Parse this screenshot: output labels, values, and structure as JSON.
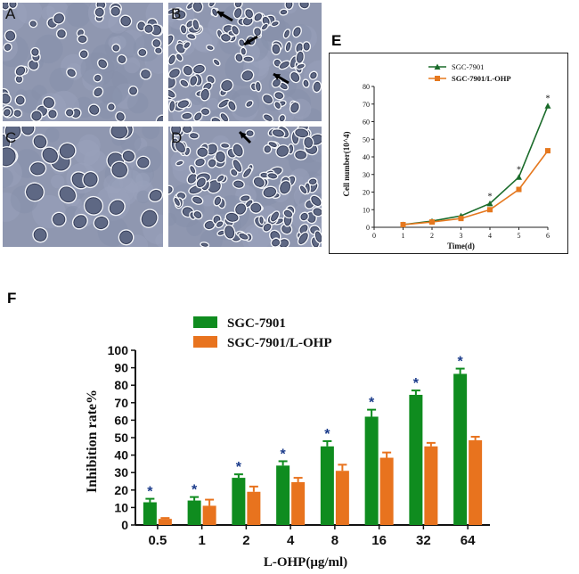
{
  "panels": {
    "A": "A",
    "B": "B",
    "C": "C",
    "D": "D",
    "E": "E",
    "F": "F"
  },
  "colors": {
    "green": "#0f8c1f",
    "orange": "#e8731e",
    "line_green": "#1a6b2a",
    "line_orange": "#e5781f",
    "star": "#1a3a8a"
  },
  "chart_data": [
    {
      "type": "line",
      "xlabel": "Time(d)",
      "ylabel": "Cell number(10^4)",
      "x": [
        1,
        2,
        3,
        4,
        5,
        6
      ],
      "xticks": [
        "0",
        "1",
        "2",
        "3",
        "4",
        "5",
        "6"
      ],
      "yticks": [
        "0",
        "10",
        "20",
        "30",
        "40",
        "50",
        "60",
        "70",
        "80"
      ],
      "xlim": [
        0,
        6
      ],
      "ylim": [
        0,
        80
      ],
      "legend_position": "top-right",
      "series": [
        {
          "name": "SGC-7901",
          "values": [
            1.5,
            3.5,
            6.5,
            13.5,
            28.5,
            69
          ]
        },
        {
          "name": "SGC-7901/L-OHP",
          "values": [
            1.5,
            3,
            5,
            10,
            21.5,
            43.5
          ]
        }
      ],
      "annotations": [
        {
          "x": 4,
          "label": "*"
        },
        {
          "x": 5,
          "label": "*"
        },
        {
          "x": 6,
          "label": "*"
        }
      ]
    },
    {
      "type": "bar",
      "xlabel": "L-OHP(μg/ml)",
      "ylabel": "Inhibition rate%",
      "categories": [
        "0.5",
        "1",
        "2",
        "4",
        "8",
        "16",
        "32",
        "64"
      ],
      "yticks": [
        "0",
        "10",
        "20",
        "30",
        "40",
        "50",
        "60",
        "70",
        "80",
        "90",
        "100"
      ],
      "ylim": [
        0,
        100
      ],
      "legend_position": "top-left",
      "series": [
        {
          "name": "SGC-7901",
          "values": [
            13,
            14,
            27,
            34,
            45,
            62,
            74.5,
            86.5
          ],
          "errors": [
            2,
            2,
            2,
            2.5,
            3,
            4,
            2.5,
            3
          ]
        },
        {
          "name": "SGC-7901/L-OHP",
          "values": [
            3.5,
            11,
            19,
            24.5,
            31,
            38.5,
            45,
            48.5
          ],
          "errors": [
            0.5,
            3.5,
            3,
            2.5,
            3.5,
            3,
            2,
            2
          ]
        }
      ],
      "significance": [
        "*",
        "*",
        "*",
        "*",
        "*",
        "*",
        "*",
        "*"
      ]
    }
  ]
}
